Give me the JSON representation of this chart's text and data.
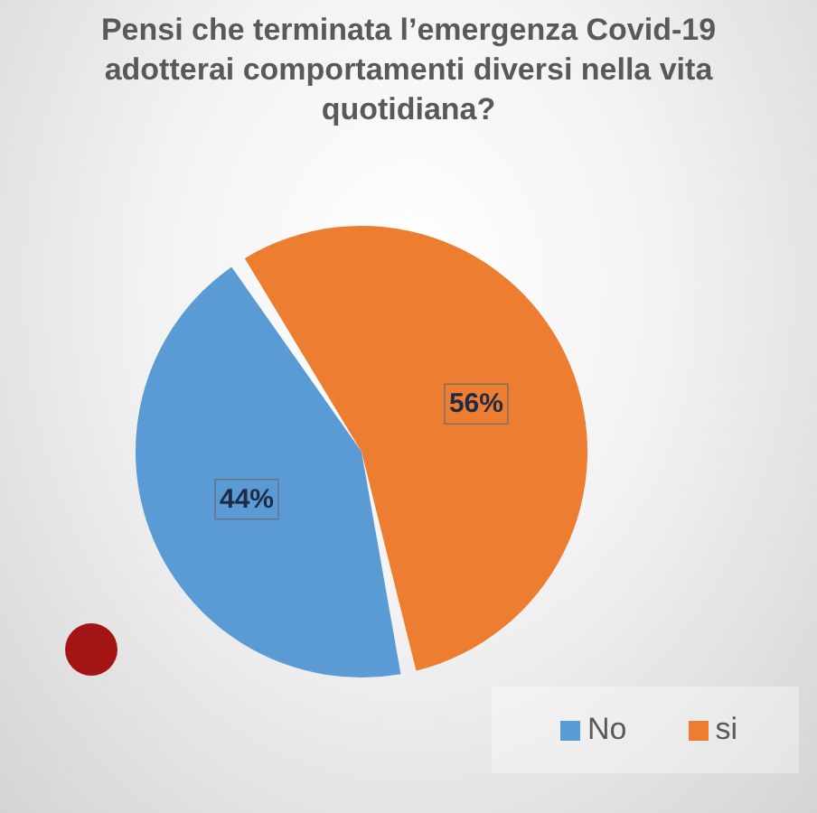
{
  "chart_data": {
    "type": "pie",
    "title": "Pensi che terminata l’emergenza Covid-19 adotterai comportamenti diversi nella vita quotidiana?",
    "categories": [
      "No",
      "si"
    ],
    "values": [
      44,
      56
    ],
    "colors": [
      "#5b9bd5",
      "#ed7d31"
    ],
    "value_labels": [
      "44%",
      "56%"
    ],
    "legend": "bottom right"
  }
}
